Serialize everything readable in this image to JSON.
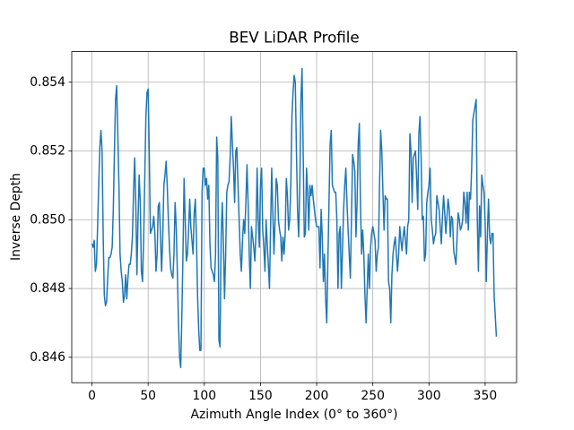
{
  "chart_data": {
    "type": "line",
    "title": "BEV LiDAR Profile",
    "xlabel": "Azimuth Angle Index (0° to 360°)",
    "ylabel": "Inverse Depth",
    "xlim": [
      -18,
      378
    ],
    "xticks": [
      0,
      50,
      100,
      150,
      200,
      250,
      300,
      350
    ],
    "ylim": [
      0.84526,
      0.85489
    ],
    "yticks": [
      0.846,
      0.848,
      {
        "value": 0.85,
        "label": "0.850"
      },
      0.852,
      0.854
    ],
    "grid": true,
    "series": [
      {
        "color": "#1f77b4",
        "values": [
          0.8493,
          0.8492,
          0.8494,
          0.8485,
          0.8487,
          0.8498,
          0.851,
          0.8521,
          0.8526,
          0.852,
          0.8495,
          0.8478,
          0.8475,
          0.8476,
          0.8483,
          0.8489,
          0.8489,
          0.849,
          0.8492,
          0.8503,
          0.852,
          0.8535,
          0.8539,
          0.8525,
          0.851,
          0.849,
          0.8485,
          0.8482,
          0.8476,
          0.8478,
          0.8484,
          0.8477,
          0.8483,
          0.8487,
          0.8487,
          0.849,
          0.8495,
          0.8508,
          0.8518,
          0.8505,
          0.8484,
          0.85,
          0.8513,
          0.8505,
          0.8485,
          0.8482,
          0.8494,
          0.8512,
          0.853,
          0.8537,
          0.8538,
          0.852,
          0.8496,
          0.8497,
          0.8498,
          0.8501,
          0.8496,
          0.8485,
          0.849,
          0.8504,
          0.8505,
          0.8495,
          0.8485,
          0.8495,
          0.851,
          0.8513,
          0.8517,
          0.851,
          0.85,
          0.8492,
          0.8486,
          0.8484,
          0.8483,
          0.849,
          0.8505,
          0.8498,
          0.8485,
          0.847,
          0.846,
          0.8457,
          0.8472,
          0.849,
          0.8512,
          0.85,
          0.8488,
          0.849,
          0.8497,
          0.8506,
          0.8498,
          0.8494,
          0.849,
          0.8502,
          0.8506,
          0.8495,
          0.8478,
          0.8468,
          0.8462,
          0.8462,
          0.8508,
          0.8515,
          0.8515,
          0.851,
          0.8512,
          0.8506,
          0.851,
          0.8493,
          0.8486,
          0.8485,
          0.8484,
          0.8482,
          0.849,
          0.8524,
          0.8518,
          0.8465,
          0.8463,
          0.8495,
          0.8505,
          0.8493,
          0.8477,
          0.849,
          0.8508,
          0.851,
          0.8511,
          0.8518,
          0.853,
          0.8522,
          0.8515,
          0.8505,
          0.852,
          0.8521,
          0.851,
          0.85,
          0.849,
          0.8485,
          0.8494,
          0.85,
          0.8496,
          0.8505,
          0.8516,
          0.8505,
          0.849,
          0.848,
          0.8498,
          0.8495,
          0.8492,
          0.8488,
          0.8496,
          0.8515,
          0.85,
          0.8492,
          0.851,
          0.8515,
          0.8497,
          0.8492,
          0.8485,
          0.85,
          0.8493,
          0.8487,
          0.848,
          0.8498,
          0.8515,
          0.8502,
          0.849,
          0.85,
          0.8512,
          0.851,
          0.85,
          0.8497,
          0.8495,
          0.8488,
          0.8495,
          0.849,
          0.8496,
          0.8512,
          0.8507,
          0.8497,
          0.85,
          0.851,
          0.853,
          0.8537,
          0.8542,
          0.854,
          0.852,
          0.8503,
          0.8495,
          0.851,
          0.8535,
          0.8544,
          0.852,
          0.8495,
          0.8496,
          0.8515,
          0.8508,
          0.8497,
          0.851,
          0.8507,
          0.851,
          0.8506,
          0.8503,
          0.85,
          0.8498,
          0.8498,
          0.8498,
          0.8486,
          0.8503,
          0.8495,
          0.8482,
          0.849,
          0.8477,
          0.847,
          0.8488,
          0.8505,
          0.8522,
          0.8526,
          0.851,
          0.8509,
          0.8508,
          0.8508,
          0.85,
          0.848,
          0.8496,
          0.8498,
          0.848,
          0.8491,
          0.8503,
          0.851,
          0.8515,
          0.8505,
          0.8497,
          0.849,
          0.8483,
          0.85,
          0.8519,
          0.8517,
          0.8514,
          0.8495,
          0.8505,
          0.8522,
          0.8528,
          0.8505,
          0.849,
          0.8497,
          0.849,
          0.8478,
          0.847,
          0.848,
          0.849,
          0.848,
          0.8492,
          0.8496,
          0.8498,
          0.8496,
          0.8494,
          0.8485,
          0.849,
          0.8492,
          0.851,
          0.8526,
          0.852,
          0.8508,
          0.8497,
          0.8507,
          0.8506,
          0.8506,
          0.8482,
          0.848,
          0.847,
          0.8484,
          0.849,
          0.8493,
          0.8495,
          0.849,
          0.8485,
          0.849,
          0.8498,
          0.8494,
          0.8491,
          0.8495,
          0.8498,
          0.8494,
          0.849,
          0.8498,
          0.85,
          0.8525,
          0.852,
          0.8505,
          0.8518,
          0.8519,
          0.852,
          0.8512,
          0.8503,
          0.8525,
          0.853,
          0.8518,
          0.85,
          0.8501,
          0.8488,
          0.849,
          0.8505,
          0.8508,
          0.851,
          0.8515,
          0.85,
          0.8497,
          0.8493,
          0.8495,
          0.8496,
          0.8507,
          0.8505,
          0.8503,
          0.8498,
          0.8493,
          0.8501,
          0.8507,
          0.8502,
          0.8496,
          0.8501,
          0.8506,
          0.8503,
          0.8495,
          0.8501,
          0.85,
          0.8491,
          0.8489,
          0.8487,
          0.8495,
          0.8502,
          0.85,
          0.8497,
          0.8498,
          0.85,
          0.8508,
          0.8505,
          0.8499,
          0.8508,
          0.8497,
          0.8508,
          0.8506,
          0.8515,
          0.8529,
          0.8531,
          0.8533,
          0.8535,
          0.85,
          0.8485,
          0.8504,
          0.8495,
          0.8513,
          0.851,
          0.8508,
          0.8499,
          0.8482,
          0.8496,
          0.8506,
          0.8495,
          0.8493,
          0.8496,
          0.8496,
          0.8478,
          0.8472,
          0.8466
        ]
      }
    ]
  }
}
